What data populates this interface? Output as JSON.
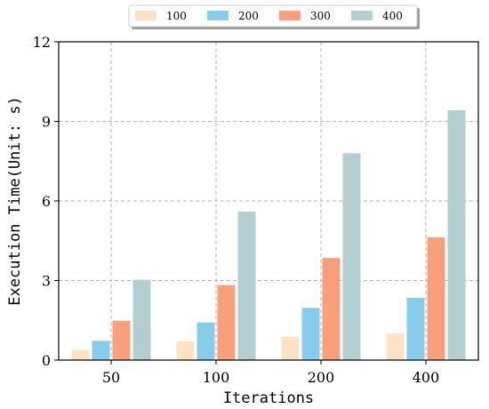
{
  "chart_data": {
    "type": "bar",
    "categories": [
      "50",
      "100",
      "200",
      "400"
    ],
    "series": [
      {
        "name": "100",
        "values": [
          0.38,
          0.7,
          0.88,
          1.0
        ],
        "color": "#FDE2C4"
      },
      {
        "name": "200",
        "values": [
          0.73,
          1.42,
          1.97,
          2.35
        ],
        "color": "#87CDEB"
      },
      {
        "name": "300",
        "values": [
          1.48,
          2.83,
          3.85,
          4.63
        ],
        "color": "#FA9F7C"
      },
      {
        "name": "400",
        "values": [
          3.03,
          5.6,
          7.8,
          9.42
        ],
        "color": "#B2CECE"
      }
    ],
    "xlabel": "Iterations",
    "ylabel": "Execution Time(Unit: s)",
    "ylim": [
      0,
      12
    ],
    "yticks": [
      "0",
      "3",
      "6",
      "9",
      "12"
    ],
    "grid": true,
    "legend_position": "top-center"
  }
}
